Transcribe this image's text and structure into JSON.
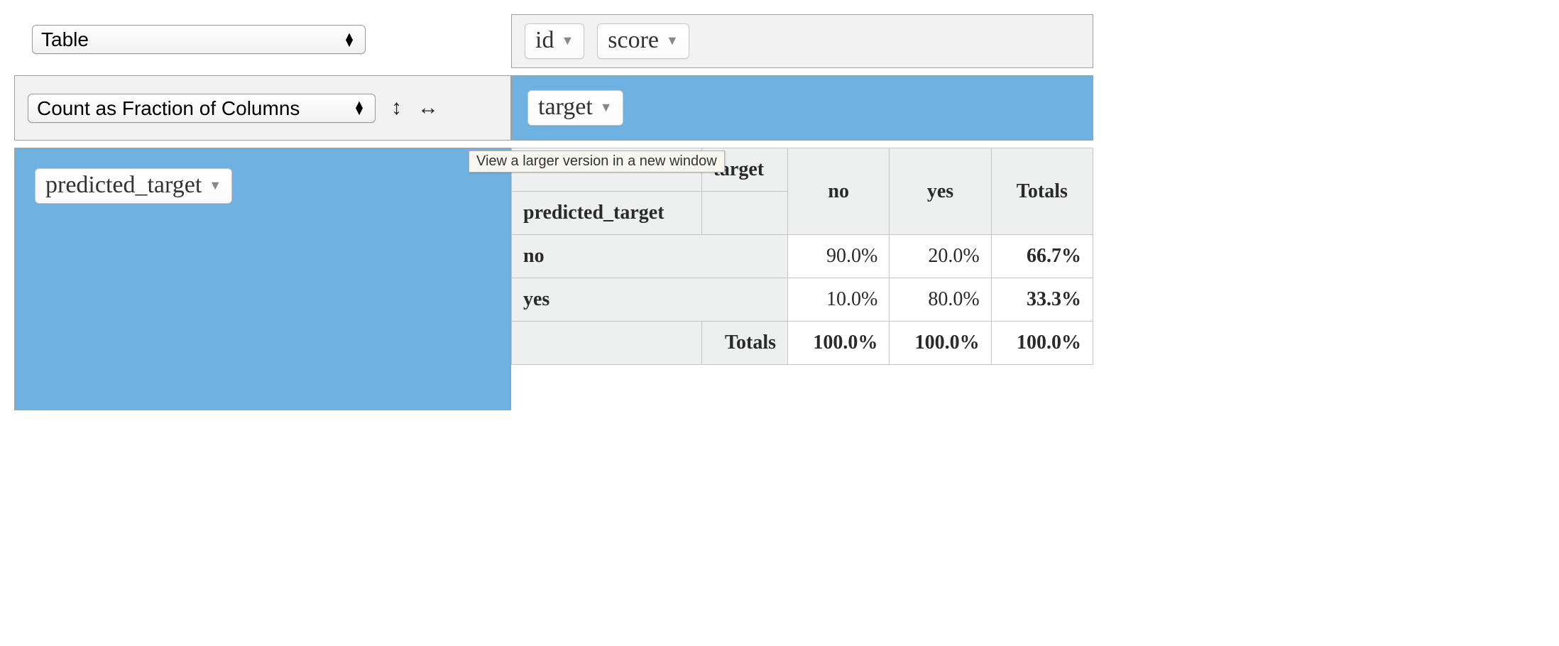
{
  "renderer": {
    "selected": "Table"
  },
  "aggregator": {
    "selected": "Count as Fraction of Columns"
  },
  "unused_fields": [
    {
      "label": "id"
    },
    {
      "label": "score"
    }
  ],
  "col_fields": [
    {
      "label": "target"
    }
  ],
  "row_fields": [
    {
      "label": "predicted_target"
    }
  ],
  "tooltip": "View a larger version in a new window",
  "pivot_table": {
    "type": "table",
    "col_axis_label": "target",
    "row_axis_label": "predicted_target",
    "col_headers": [
      "no",
      "yes"
    ],
    "row_headers": [
      "no",
      "yes"
    ],
    "totals_label": "Totals",
    "cells": [
      [
        "90.0%",
        "20.0%"
      ],
      [
        "10.0%",
        "80.0%"
      ]
    ],
    "row_totals": [
      "66.7%",
      "33.3%"
    ],
    "col_totals": [
      "100.0%",
      "100.0%"
    ],
    "grand_total": "100.0%",
    "header_bg": "#eef0f0",
    "cell_bg": "#ffffff",
    "border_color": "#c5c5c5",
    "font_size_pt": 21,
    "text_color": "#2a2a2a"
  },
  "colors": {
    "drop_zone_blue": "#6fb1e0",
    "panel_gray": "#f2f2f2",
    "panel_border": "#a0a0a0",
    "pill_bg": "#ffffff",
    "pill_border": "#c8c8c8",
    "triangle_gray": "#888888"
  }
}
